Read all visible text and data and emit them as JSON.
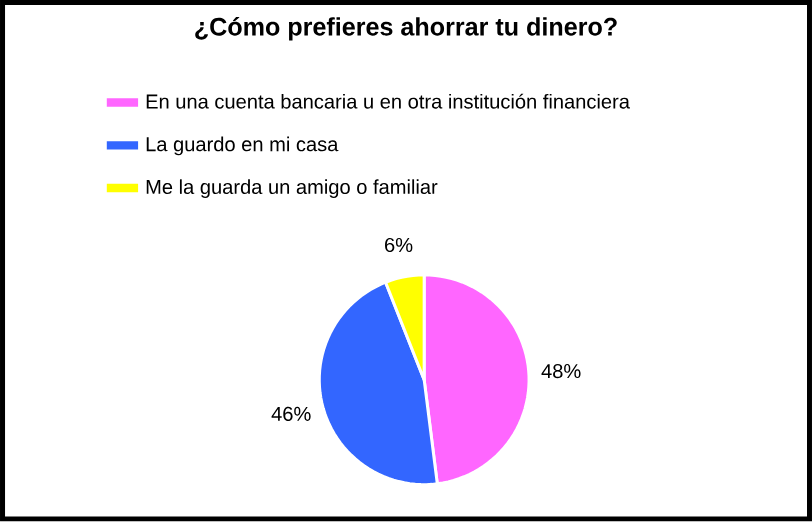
{
  "chart_data": {
    "type": "pie",
    "title": "¿Cómo prefieres ahorrar tu dinero?",
    "categories": [
      "En una cuenta bancaria u en otra institución financiera",
      "La guardo en mi casa",
      "Me la guarda un amigo  o familiar"
    ],
    "values": [
      48,
      46,
      6
    ],
    "colors": [
      "#ff66ff",
      "#3366ff",
      "#ffff00"
    ],
    "value_labels": [
      "48%",
      "46%",
      "6%"
    ],
    "legend": "top"
  }
}
